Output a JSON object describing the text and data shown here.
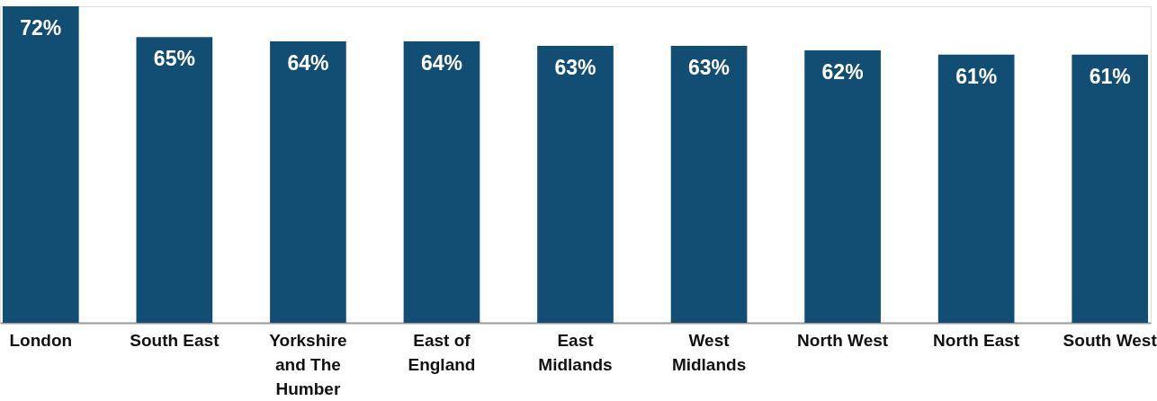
{
  "chart_data": {
    "type": "bar",
    "categories": [
      "London",
      "South East",
      "Yorkshire and The Humber",
      "East of England",
      "East Midlands",
      "West Midlands",
      "North West",
      "North East",
      "South West"
    ],
    "values": [
      72,
      65,
      64,
      64,
      63,
      63,
      62,
      61,
      61
    ],
    "value_labels": [
      "72%",
      "65%",
      "64%",
      "64%",
      "63%",
      "63%",
      "62%",
      "61%",
      "61%"
    ],
    "color": "#124e74"
  }
}
